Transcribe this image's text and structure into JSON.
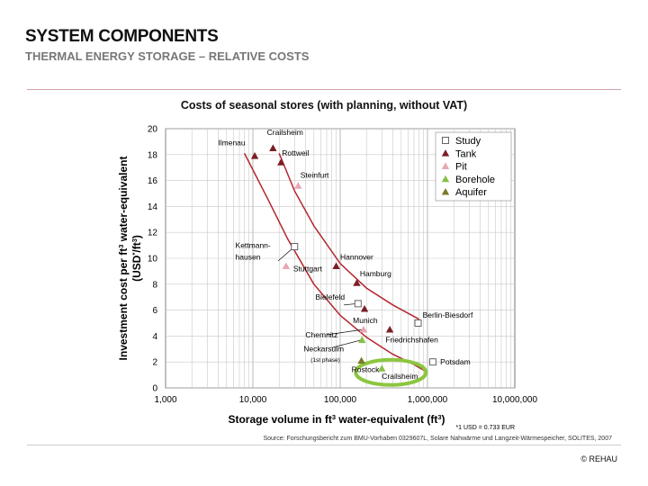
{
  "header": {
    "title": "SYSTEM COMPONENTS",
    "subtitle": "THERMAL ENERGY STORAGE – RELATIVE COSTS"
  },
  "footer": {
    "source": "Source: Forschungsbericht zum BMU-Vorhaben 0329607L, Solare Nahwärme und Langzeit-Wärmespeicher, SOLITES, 2007",
    "copyright": "© REHAU"
  },
  "colors": {
    "accent_rule": "#d4a3ab",
    "tank": "#7a1f24",
    "pit": "#e8a7b2",
    "borehole": "#86c04a",
    "aquifer": "#7a7a2a",
    "curve": "#b3262f",
    "highlight_ring": "#8cc63f"
  },
  "chart_data": {
    "type": "scatter",
    "title": "Costs of seasonal stores (with planning, without VAT)",
    "xlabel_parts": [
      "Storage volume in ft",
      "3",
      " water-equivalent (ft",
      "3",
      ")"
    ],
    "ylabel_line1_parts": [
      "Investment cost per ft",
      "3",
      " water-equivalent"
    ],
    "ylabel_line2_parts": [
      "(USD",
      "*",
      "/ft",
      "3",
      ")"
    ],
    "note": "*1 USD = 0.733 EUR",
    "xscale": "log",
    "xlim": [
      1000,
      10000000
    ],
    "ylim": [
      0,
      20
    ],
    "xticks": [
      1000,
      10000,
      100000,
      1000000,
      10000000
    ],
    "xtick_labels": [
      "1,000",
      "10,000",
      "100,000",
      "1,000,000",
      "10,000,000"
    ],
    "yticks": [
      0,
      2,
      4,
      6,
      8,
      10,
      12,
      14,
      16,
      18,
      20
    ],
    "grid": true,
    "legend_position": "top-right",
    "legend": [
      {
        "key": "study",
        "label": "Study"
      },
      {
        "key": "tank",
        "label": "Tank"
      },
      {
        "key": "pit",
        "label": "Pit"
      },
      {
        "key": "borehole",
        "label": "Borehole"
      },
      {
        "key": "aquifer",
        "label": "Aquifer"
      }
    ],
    "points": [
      {
        "type": "tank",
        "x": 10500,
        "y": 17.9
      },
      {
        "type": "tank",
        "x": 17000,
        "y": 18.5
      },
      {
        "type": "tank",
        "x": 21000,
        "y": 17.4
      },
      {
        "type": "pit",
        "x": 33000,
        "y": 15.6
      },
      {
        "type": "study",
        "x": 30000,
        "y": 10.9
      },
      {
        "type": "pit",
        "x": 24000,
        "y": 9.4
      },
      {
        "type": "tank",
        "x": 90000,
        "y": 9.4
      },
      {
        "type": "tank",
        "x": 155000,
        "y": 8.1
      },
      {
        "type": "study",
        "x": 160000,
        "y": 6.5
      },
      {
        "type": "tank",
        "x": 190000,
        "y": 6.1
      },
      {
        "type": "study",
        "x": 780000,
        "y": 5.0
      },
      {
        "type": "pit",
        "x": 185000,
        "y": 4.5
      },
      {
        "type": "borehole",
        "x": 178000,
        "y": 3.7
      },
      {
        "type": "tank",
        "x": 370000,
        "y": 4.5
      },
      {
        "type": "aquifer",
        "x": 175000,
        "y": 2.1
      },
      {
        "type": "borehole",
        "x": 300000,
        "y": 1.5
      },
      {
        "type": "study",
        "x": 1150000,
        "y": 2.0
      }
    ],
    "labels": [
      {
        "text": "Ilmenau",
        "x": 4000,
        "y": 18.7
      },
      {
        "text": "Crailsheim",
        "x": 14500,
        "y": 19.5
      },
      {
        "text": "Rottweil",
        "x": 21500,
        "y": 17.9
      },
      {
        "text": "Steinfurt",
        "x": 35000,
        "y": 16.2
      },
      {
        "text": "Kettmann-",
        "x": 6300,
        "y": 10.8
      },
      {
        "text": "hausen",
        "x": 6300,
        "y": 9.9
      },
      {
        "text": "Stuttgart",
        "x": 29000,
        "y": 9.0
      },
      {
        "text": "Hannover",
        "x": 100000,
        "y": 9.9
      },
      {
        "text": "Hamburg",
        "x": 168000,
        "y": 8.6
      },
      {
        "text": "Bielefeld",
        "x": 52000,
        "y": 6.8
      },
      {
        "text": "Munich",
        "x": 140000,
        "y": 5.0
      },
      {
        "text": "Berlin-Biesdorf",
        "x": 880000,
        "y": 5.4
      },
      {
        "text": "Chemnitz",
        "x": 40000,
        "y": 3.9
      },
      {
        "text": "Friedrichshafen",
        "x": 330000,
        "y": 3.5
      },
      {
        "text": "Neckarsulm",
        "x": 38000,
        "y": 2.8
      },
      {
        "text": "(1st phase)",
        "x": 46000,
        "y": 2.0
      },
      {
        "text": "Rostock",
        "x": 135000,
        "y": 1.2
      },
      {
        "text": "Crailsheim",
        "x": 300000,
        "y": 0.7
      },
      {
        "text": "Potsdam",
        "x": 1400000,
        "y": 1.8
      }
    ],
    "leaders": [
      {
        "from": [
          19500,
          9.8
        ],
        "to": [
          30000,
          10.9
        ]
      },
      {
        "from": [
          70000,
          4.1
        ],
        "to": [
          180000,
          4.5
        ]
      },
      {
        "from": [
          80000,
          3.1
        ],
        "to": [
          175000,
          3.7
        ]
      },
      {
        "from": [
          110000,
          6.4
        ],
        "to": [
          155000,
          6.5
        ]
      }
    ],
    "curves": [
      [
        [
          8000,
          18.1
        ],
        [
          15000,
          14.5
        ],
        [
          25000,
          11.5
        ],
        [
          50000,
          8.0
        ],
        [
          100000,
          5.6
        ],
        [
          200000,
          3.9
        ],
        [
          400000,
          2.6
        ],
        [
          700000,
          1.8
        ],
        [
          1000000,
          1.2
        ]
      ],
      [
        [
          20000,
          18.1
        ],
        [
          30000,
          15.2
        ],
        [
          50000,
          12.5
        ],
        [
          100000,
          9.6
        ],
        [
          200000,
          7.7
        ],
        [
          400000,
          6.4
        ],
        [
          800000,
          5.3
        ]
      ]
    ],
    "highlight": {
      "x": 380000,
      "y": 1.2
    }
  }
}
